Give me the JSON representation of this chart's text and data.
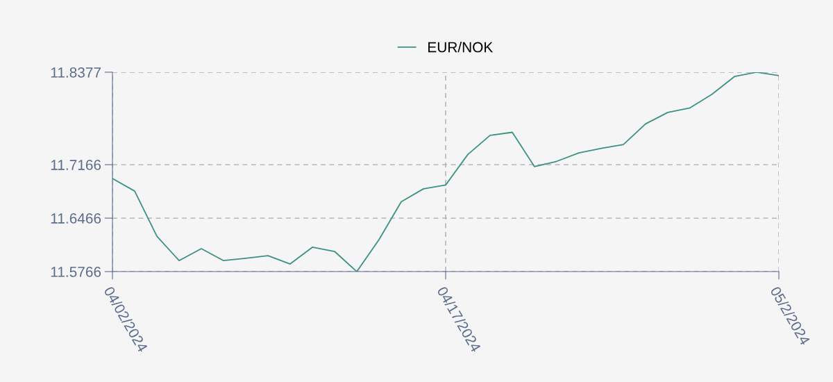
{
  "chart_data": {
    "type": "line",
    "x": [
      "2024-04-02",
      "2024-04-03",
      "2024-04-04",
      "2024-04-05",
      "2024-04-06",
      "2024-04-07",
      "2024-04-08",
      "2024-04-09",
      "2024-04-10",
      "2024-04-11",
      "2024-04-12",
      "2024-04-13",
      "2024-04-14",
      "2024-04-15",
      "2024-04-16",
      "2024-04-17",
      "2024-04-18",
      "2024-04-19",
      "2024-04-20",
      "2024-04-21",
      "2024-04-22",
      "2024-04-23",
      "2024-04-24",
      "2024-04-25",
      "2024-04-26",
      "2024-04-27",
      "2024-04-28",
      "2024-04-29",
      "2024-04-30",
      "2024-05-01",
      "2024-05-02"
    ],
    "series": [
      {
        "name": "EUR/NOK",
        "color": "#3a9184",
        "values": [
          11.6985,
          11.682,
          11.623,
          11.591,
          11.6066,
          11.591,
          11.594,
          11.5975,
          11.5866,
          11.6085,
          11.603,
          11.5766,
          11.6185,
          11.668,
          11.685,
          11.69,
          11.73,
          11.755,
          11.759,
          11.714,
          11.721,
          11.732,
          11.738,
          11.743,
          11.77,
          11.785,
          11.791,
          11.809,
          11.832,
          11.8377,
          11.8333
        ]
      }
    ],
    "xlim": [
      "2024-04-02",
      "2024-05-02"
    ],
    "xticks": [
      {
        "value": "2024-04-02",
        "label": "04/02/2024"
      },
      {
        "value": "2024-04-17",
        "label": "04/17/2024"
      },
      {
        "value": "2024-05-02",
        "label": "05/2/2024"
      }
    ],
    "ylim": [
      11.5766,
      11.8377
    ],
    "yticks": [
      11.5766,
      11.6466,
      11.7166,
      11.8377
    ],
    "grid": true,
    "legend": "top",
    "line_style": "solid"
  }
}
